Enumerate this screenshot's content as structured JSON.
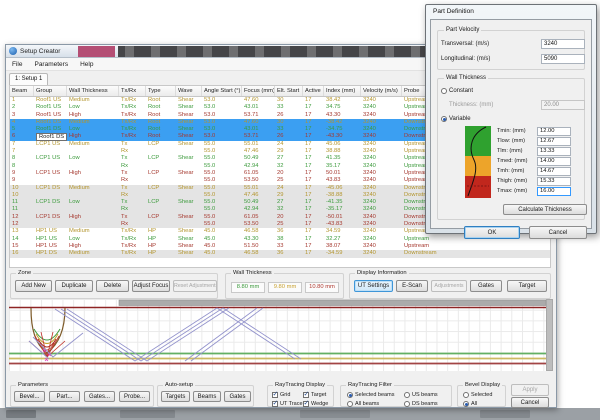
{
  "colors": {
    "selection_bg": "#3b9ff2",
    "alt_row_bg": "#e4e4e4",
    "zone_medium": "#b3952e",
    "zone_low": "#3d9b3d",
    "zone_high": "#a5392f",
    "wt_green": "#3d9b3d",
    "wt_yellow": "#c9a231",
    "wt_red": "#b03a30",
    "accent_blue": "#3f96d8"
  },
  "window": {
    "title": "Setup Creator",
    "menu": [
      "File",
      "Parameters",
      "Help"
    ],
    "tab": "1: Setup 1"
  },
  "table": {
    "columns": [
      "Beam",
      "Group",
      "Wall Thickness",
      "Tx/Rx",
      "Type",
      "Wave",
      "Angle Start (°)",
      "Focus (mm)",
      "Elt. Start",
      "Active",
      "Index (mm)",
      "Velocity (m/s)",
      "Probe"
    ],
    "rows": [
      {
        "beam": "1",
        "group": "Roof1 US",
        "wt": "Medium",
        "txrx": "Tx/Rx",
        "type": "Root",
        "wave": "Shear",
        "angle": "53.0",
        "focus": "47.60",
        "elt": "30",
        "active": "17",
        "index": "38.42",
        "vel": "3240",
        "probe": "Upstream",
        "zone": "medium",
        "state": "normal"
      },
      {
        "beam": "2",
        "group": "Roof1 US",
        "wt": "Low",
        "txrx": "Tx/Rx",
        "type": "Root",
        "wave": "Shear",
        "angle": "53.0",
        "focus": "43.01",
        "elt": "33",
        "active": "17",
        "index": "34.75",
        "vel": "3240",
        "probe": "Upstream",
        "zone": "low",
        "state": "normal"
      },
      {
        "beam": "3",
        "group": "Roof1 US",
        "wt": "High",
        "txrx": "Tx/Rx",
        "type": "Root",
        "wave": "Shear",
        "angle": "53.0",
        "focus": "53.71",
        "elt": "26",
        "active": "17",
        "index": "43.30",
        "vel": "3240",
        "probe": "Upstream",
        "zone": "high",
        "state": "normal"
      },
      {
        "beam": "4",
        "group": "Roof1 DS",
        "wt": "Medium",
        "txrx": "Tx/Rx",
        "type": "Root",
        "wave": "Shear",
        "angle": "53.0",
        "focus": "47.60",
        "elt": "30",
        "active": "17",
        "index": "-38.42",
        "vel": "3240",
        "probe": "Downstream",
        "zone": "medium",
        "state": "selected"
      },
      {
        "beam": "5",
        "group": "Roof1 DS",
        "wt": "Low",
        "txrx": "Tx/Rx",
        "type": "Root",
        "wave": "Shear",
        "angle": "53.0",
        "focus": "43.01",
        "elt": "33",
        "active": "17",
        "index": "-34.75",
        "vel": "3240",
        "probe": "Downstream",
        "zone": "low",
        "state": "selected"
      },
      {
        "beam": "6",
        "group": "Roof1 DS",
        "wt": "High",
        "txrx": "Tx/Rx",
        "type": "Root",
        "wave": "Shear",
        "angle": "53.0",
        "focus": "53.71",
        "elt": "26",
        "active": "17",
        "index": "-43.30",
        "vel": "3240",
        "probe": "Downstream",
        "zone": "high",
        "state": "selected",
        "editing": true
      },
      {
        "beam": "7",
        "group": "LCP1 US",
        "wt": "Medium",
        "txrx": "Tx",
        "type": "LCP",
        "wave": "Shear",
        "angle": "55.0",
        "focus": "55.01",
        "elt": "24",
        "active": "17",
        "index": "45.06",
        "vel": "3240",
        "probe": "Upstream",
        "zone": "medium",
        "state": "normal"
      },
      {
        "beam": "7",
        "group": "",
        "wt": "",
        "txrx": "Rx",
        "type": "",
        "wave": "",
        "angle": "55.0",
        "focus": "47.46",
        "elt": "29",
        "active": "17",
        "index": "38.88",
        "vel": "3240",
        "probe": "Upstream",
        "zone": "medium",
        "state": "normal"
      },
      {
        "beam": "8",
        "group": "LCP1 US",
        "wt": "Low",
        "txrx": "Tx",
        "type": "LCP",
        "wave": "Shear",
        "angle": "55.0",
        "focus": "50.49",
        "elt": "27",
        "active": "17",
        "index": "41.35",
        "vel": "3240",
        "probe": "Upstream",
        "zone": "low",
        "state": "normal"
      },
      {
        "beam": "8",
        "group": "",
        "wt": "",
        "txrx": "Rx",
        "type": "",
        "wave": "",
        "angle": "55.0",
        "focus": "42.94",
        "elt": "32",
        "active": "17",
        "index": "35.17",
        "vel": "3240",
        "probe": "Upstream",
        "zone": "low",
        "state": "normal"
      },
      {
        "beam": "9",
        "group": "LCP1 US",
        "wt": "High",
        "txrx": "Tx",
        "type": "LCP",
        "wave": "Shear",
        "angle": "55.0",
        "focus": "61.05",
        "elt": "20",
        "active": "17",
        "index": "50.01",
        "vel": "3240",
        "probe": "Upstream",
        "zone": "high",
        "state": "normal"
      },
      {
        "beam": "9",
        "group": "",
        "wt": "",
        "txrx": "Rx",
        "type": "",
        "wave": "",
        "angle": "55.0",
        "focus": "53.50",
        "elt": "25",
        "active": "17",
        "index": "43.83",
        "vel": "3240",
        "probe": "Upstream",
        "zone": "high",
        "state": "normal"
      },
      {
        "beam": "10",
        "group": "LCP1 DS",
        "wt": "Medium",
        "txrx": "Tx",
        "type": "LCP",
        "wave": "Shear",
        "angle": "55.0",
        "focus": "55.01",
        "elt": "24",
        "active": "17",
        "index": "-45.06",
        "vel": "3240",
        "probe": "Downstream",
        "zone": "medium",
        "state": "alt"
      },
      {
        "beam": "10",
        "group": "",
        "wt": "",
        "txrx": "Rx",
        "type": "",
        "wave": "",
        "angle": "55.0",
        "focus": "47.46",
        "elt": "29",
        "active": "17",
        "index": "-38.88",
        "vel": "3240",
        "probe": "Downstream",
        "zone": "medium",
        "state": "alt"
      },
      {
        "beam": "11",
        "group": "LCP1 DS",
        "wt": "Low",
        "txrx": "Tx",
        "type": "LCP",
        "wave": "Shear",
        "angle": "55.0",
        "focus": "50.49",
        "elt": "27",
        "active": "17",
        "index": "-41.35",
        "vel": "3240",
        "probe": "Downstream",
        "zone": "low",
        "state": "alt"
      },
      {
        "beam": "11",
        "group": "",
        "wt": "",
        "txrx": "Rx",
        "type": "",
        "wave": "",
        "angle": "55.0",
        "focus": "42.94",
        "elt": "32",
        "active": "17",
        "index": "-35.17",
        "vel": "3240",
        "probe": "Downstream",
        "zone": "low",
        "state": "alt"
      },
      {
        "beam": "12",
        "group": "LCP1 DS",
        "wt": "High",
        "txrx": "Tx",
        "type": "LCP",
        "wave": "Shear",
        "angle": "55.0",
        "focus": "61.05",
        "elt": "20",
        "active": "17",
        "index": "-50.01",
        "vel": "3240",
        "probe": "Downstream",
        "zone": "high",
        "state": "alt"
      },
      {
        "beam": "12",
        "group": "",
        "wt": "",
        "txrx": "Rx",
        "type": "",
        "wave": "",
        "angle": "55.0",
        "focus": "53.50",
        "elt": "25",
        "active": "17",
        "index": "-43.83",
        "vel": "3240",
        "probe": "Downstream",
        "zone": "high",
        "state": "alt"
      },
      {
        "beam": "13",
        "group": "HP1 US",
        "wt": "Medium",
        "txrx": "Tx/Rx",
        "type": "HP",
        "wave": "Shear",
        "angle": "45.0",
        "focus": "46.58",
        "elt": "36",
        "active": "17",
        "index": "34.59",
        "vel": "3240",
        "probe": "Upstream",
        "zone": "medium",
        "state": "normal"
      },
      {
        "beam": "14",
        "group": "HP1 US",
        "wt": "Low",
        "txrx": "Tx/Rx",
        "type": "HP",
        "wave": "Shear",
        "angle": "45.0",
        "focus": "43.30",
        "elt": "38",
        "active": "17",
        "index": "32.27",
        "vel": "3240",
        "probe": "Upstream",
        "zone": "low",
        "state": "normal"
      },
      {
        "beam": "15",
        "group": "HP1 US",
        "wt": "High",
        "txrx": "Tx/Rx",
        "type": "HP",
        "wave": "Shear",
        "angle": "45.0",
        "focus": "51.50",
        "elt": "33",
        "active": "17",
        "index": "38.07",
        "vel": "3240",
        "probe": "Upstream",
        "zone": "high",
        "state": "normal"
      },
      {
        "beam": "16",
        "group": "HP1 DS",
        "wt": "Medium",
        "txrx": "Tx/Rx",
        "type": "HP",
        "wave": "Shear",
        "angle": "45.0",
        "focus": "46.58",
        "elt": "36",
        "active": "17",
        "index": "-34.59",
        "vel": "3240",
        "probe": "Downstream",
        "zone": "medium",
        "state": "alt"
      }
    ]
  },
  "zone_panel": {
    "label": "Zone",
    "buttons": [
      {
        "label": "Add New"
      },
      {
        "label": "Duplicate"
      },
      {
        "label": "Delete"
      },
      {
        "label": "Adjust Focus"
      },
      {
        "label": "Reset Adjustments",
        "disabled": true
      }
    ]
  },
  "wall_thickness_panel": {
    "label": "Wall Thickness",
    "values": [
      {
        "text": "8.80 mm"
      },
      {
        "text": "9.80 mm"
      },
      {
        "text": "10.80 mm"
      }
    ]
  },
  "display_info": {
    "label": "Display Information",
    "buttons": [
      {
        "label": "UT Settings",
        "active": true
      },
      {
        "label": "E-Scan"
      },
      {
        "label": "Adjustments",
        "disabled": true
      },
      {
        "label": "Gates"
      },
      {
        "label": "Target"
      }
    ]
  },
  "parameters_panel": {
    "label": "Parameters",
    "buttons": [
      "Bevel...",
      "Part...",
      "Gates...",
      "Probe..."
    ]
  },
  "auto_setup": {
    "label": "Auto-setup",
    "buttons": [
      "Targets",
      "Beams",
      "Gates"
    ]
  },
  "rt_display": {
    "label": "RayTracing Display",
    "options": [
      {
        "label": "Grid",
        "checked": true
      },
      {
        "label": "Target",
        "checked": true
      },
      {
        "label": "UT Trace",
        "checked": true
      },
      {
        "label": "Wedge",
        "checked": true
      }
    ]
  },
  "rt_filter": {
    "label": "RayTracing Filter",
    "options": [
      {
        "label": "Selected beams",
        "selected": true
      },
      {
        "label": "US beams"
      },
      {
        "label": "All beams"
      },
      {
        "label": "DS beams"
      }
    ]
  },
  "bevel_display": {
    "label": "Bevel Display",
    "options": [
      {
        "label": "Selected"
      },
      {
        "label": "All",
        "selected": true
      }
    ]
  },
  "actions": {
    "apply": "Apply",
    "cancel": "Cancel"
  },
  "dialog": {
    "title": "Part Definition",
    "part_velocity": {
      "label": "Part Velocity",
      "fields": [
        {
          "label": "Transversal: (m/s)",
          "value": "3240"
        },
        {
          "label": "Longitudinal: (m/s)",
          "value": "5090"
        }
      ]
    },
    "wall_thickness": {
      "label": "Wall Thickness",
      "constant_label": "Constant",
      "thickness_label": "Thickness: (mm)",
      "thickness_value": "20.00",
      "variable_label": "Variable",
      "t_fields": [
        {
          "label": "Tmin: (mm)",
          "value": "12.00"
        },
        {
          "label": "Tlow: (mm)",
          "value": "12.67"
        },
        {
          "label": "Tlm: (mm)",
          "value": "13.33"
        },
        {
          "label": "Tmed: (mm)",
          "value": "14.00"
        },
        {
          "label": "Tmh: (mm)",
          "value": "14.67"
        },
        {
          "label": "Thigh: (mm)",
          "value": "15.33"
        },
        {
          "label": "Tmax: (mm)",
          "value": "16.00"
        }
      ],
      "calculate_label": "Calculate Thickness"
    },
    "ok_label": "OK",
    "cancel_label": "Cancel"
  }
}
